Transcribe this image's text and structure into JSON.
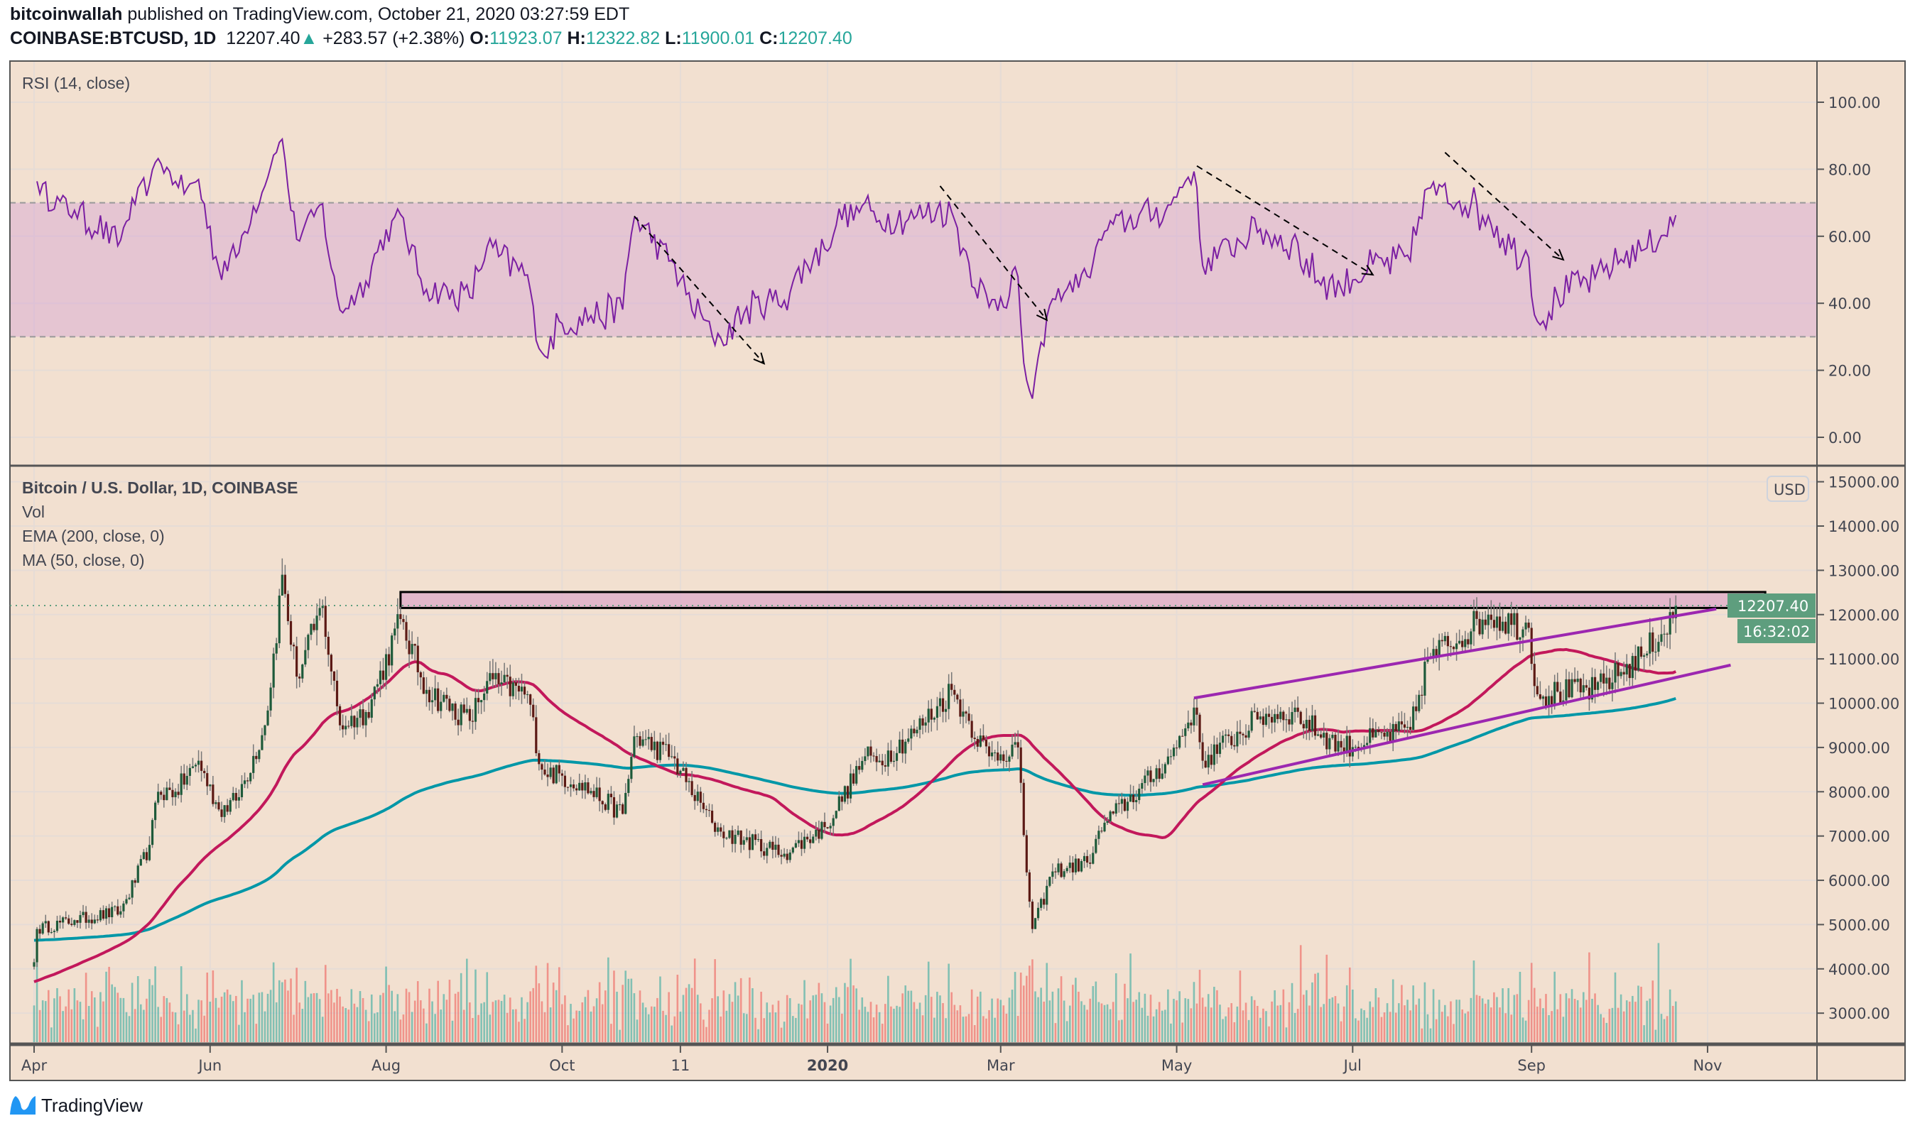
{
  "header": {
    "author": "bitcoinwallah",
    "published": "published on TradingView.com, October 21, 2020 03:27:59 EDT",
    "symbol": "COINBASE:BTCUSD, 1D",
    "last": "12207.40",
    "change": "+283.57 (+2.38%)",
    "o_label": "O:",
    "o": "11923.07",
    "h_label": "H:",
    "h": "12322.82",
    "l_label": "L:",
    "l": "11900.01",
    "c_label": "C:",
    "c": "12207.40"
  },
  "legends": {
    "rsi": "RSI (14, close)",
    "main": "Bitcoin / U.S. Dollar, 1D, COINBASE",
    "vol": "Vol",
    "ema": "EMA (200, close, 0)",
    "ma": "MA (50, close, 0)"
  },
  "currency_button": "USD",
  "price_tag": "12207.40",
  "countdown_tag": "16:32:02",
  "logo_text": "TradingView",
  "colors": {
    "background": "#f2e0d0",
    "up": "#1e5a3a",
    "down": "#5c1a15",
    "wick": "#777777",
    "ma50": "#c2185b",
    "ema200": "#0097a7",
    "trendline": "#9c27b0",
    "rsi": "#7b1fa2",
    "rsi_band": "rgba(206,147,216,0.35)",
    "tag": "#5e9e7e",
    "vol_up": "rgba(38,166,154,0.55)",
    "vol_down": "rgba(239,83,80,0.55)",
    "zone": "rgba(220,170,200,0.75)"
  },
  "chart_data": {
    "type": "candlestick",
    "title": "Bitcoin / U.S. Dollar, 1D, COINBASE",
    "x_range": [
      "2019-03-29",
      "2020-11-30"
    ],
    "price_ylim": [
      2400,
      15000
    ],
    "price_ticks": [
      "3000.00",
      "4000.00",
      "5000.00",
      "6000.00",
      "7000.00",
      "8000.00",
      "9000.00",
      "10000.00",
      "11000.00",
      "12000.00",
      "13000.00",
      "14000.00",
      "15000.00"
    ],
    "rsi_ylim": [
      -8,
      108
    ],
    "rsi_ticks": [
      "0.00",
      "20.00",
      "40.00",
      "60.00",
      "80.00",
      "100.00"
    ],
    "rsi_band": [
      30,
      70
    ],
    "x_ticks": [
      {
        "date": "2019-04-01",
        "label": "Apr"
      },
      {
        "date": "2019-06-01",
        "label": "Jun"
      },
      {
        "date": "2019-08-01",
        "label": "Aug"
      },
      {
        "date": "2019-10-01",
        "label": "Oct"
      },
      {
        "date": "2019-11-11",
        "label": "11"
      },
      {
        "date": "2020-01-01",
        "label": "2020"
      },
      {
        "date": "2020-03-01",
        "label": "Mar"
      },
      {
        "date": "2020-05-01",
        "label": "May"
      },
      {
        "date": "2020-07-01",
        "label": "Jul"
      },
      {
        "date": "2020-09-01",
        "label": "Sep"
      },
      {
        "date": "2020-11-01",
        "label": "Nov"
      }
    ],
    "close_anchors": [
      [
        "2019-04-01",
        4150
      ],
      [
        "2019-04-02",
        4900
      ],
      [
        "2019-04-15",
        5100
      ],
      [
        "2019-05-01",
        5300
      ],
      [
        "2019-05-11",
        6800
      ],
      [
        "2019-05-14",
        8000
      ],
      [
        "2019-05-20",
        8000
      ],
      [
        "2019-05-28",
        8700
      ],
      [
        "2019-06-04",
        7600
      ],
      [
        "2019-06-10",
        7800
      ],
      [
        "2019-06-20",
        9500
      ],
      [
        "2019-06-26",
        12900
      ],
      [
        "2019-07-01",
        10600
      ],
      [
        "2019-07-10",
        12200
      ],
      [
        "2019-07-16",
        9500
      ],
      [
        "2019-07-25",
        9800
      ],
      [
        "2019-08-06",
        11900
      ],
      [
        "2019-08-15",
        10300
      ],
      [
        "2019-08-30",
        9600
      ],
      [
        "2019-09-05",
        10500
      ],
      [
        "2019-09-19",
        10200
      ],
      [
        "2019-09-24",
        8500
      ],
      [
        "2019-10-07",
        8200
      ],
      [
        "2019-10-22",
        7500
      ],
      [
        "2019-10-26",
        9250
      ],
      [
        "2019-11-08",
        8800
      ],
      [
        "2019-11-22",
        7300
      ],
      [
        "2019-11-25",
        7100
      ],
      [
        "2019-12-17",
        6600
      ],
      [
        "2019-12-31",
        7200
      ],
      [
        "2020-01-14",
        8800
      ],
      [
        "2020-01-19",
        8700
      ],
      [
        "2020-02-01",
        9400
      ],
      [
        "2020-02-13",
        10300
      ],
      [
        "2020-02-19",
        9600
      ],
      [
        "2020-02-26",
        8800
      ],
      [
        "2020-03-07",
        9000
      ],
      [
        "2020-03-12",
        4900
      ],
      [
        "2020-03-19",
        6200
      ],
      [
        "2020-03-31",
        6400
      ],
      [
        "2020-04-06",
        7300
      ],
      [
        "2020-04-29",
        8800
      ],
      [
        "2020-05-07",
        9900
      ],
      [
        "2020-05-10",
        8700
      ],
      [
        "2020-05-30",
        9700
      ],
      [
        "2020-06-10",
        9800
      ],
      [
        "2020-06-27",
        9000
      ],
      [
        "2020-07-21",
        9400
      ],
      [
        "2020-07-27",
        11000
      ],
      [
        "2020-08-17",
        12000
      ],
      [
        "2020-08-31",
        11700
      ],
      [
        "2020-09-03",
        10200
      ],
      [
        "2020-09-23",
        10300
      ],
      [
        "2020-10-09",
        11050
      ],
      [
        "2020-10-20",
        11920
      ],
      [
        "2020-10-21",
        12207.4
      ]
    ],
    "last_close": 12207.4,
    "indicators": {
      "ma_period": 50,
      "ema_period": 200,
      "rsi_period": 14
    },
    "resistance_zone": {
      "from": "2019-08-06",
      "to": "2020-11-21",
      "low": 12150,
      "high": 12510
    },
    "trendlines": [
      {
        "from": [
          "2020-05-07",
          10116
        ],
        "to": [
          "2020-11-04",
          12127
        ]
      },
      {
        "from": [
          "2020-05-10",
          8160
        ],
        "to": [
          "2020-11-09",
          10860
        ]
      }
    ],
    "rsi_arrows": [
      {
        "from": [
          "2019-10-26",
          66
        ],
        "to": [
          "2019-12-10",
          22
        ]
      },
      {
        "from": [
          "2020-02-09",
          75
        ],
        "to": [
          "2020-03-17",
          35
        ]
      },
      {
        "from": [
          "2020-05-08",
          81
        ],
        "to": [
          "2020-07-08",
          48.5
        ]
      },
      {
        "from": [
          "2020-08-02",
          85
        ],
        "to": [
          "2020-09-12",
          53
        ]
      }
    ]
  }
}
